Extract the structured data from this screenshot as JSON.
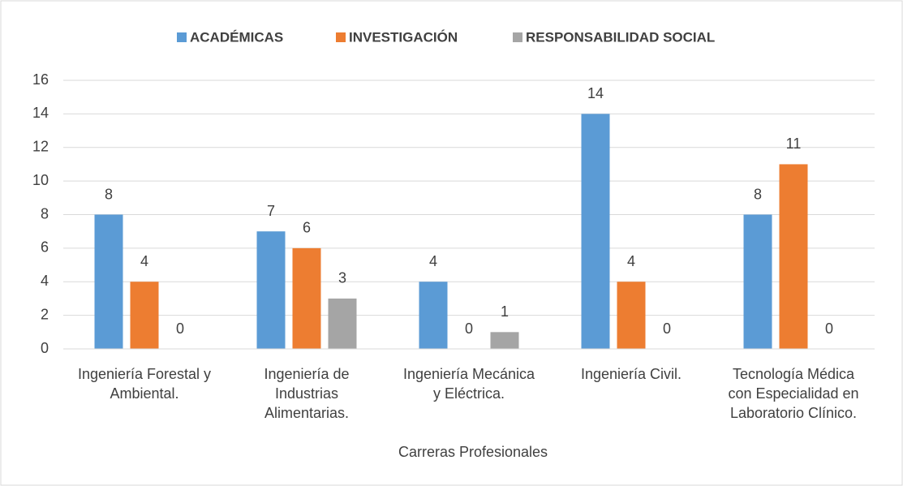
{
  "chart_data": {
    "type": "bar",
    "categories": [
      "Ingeniería Forestal y\nAmbiental.",
      "Ingeniería de\nIndustrias\nAlimentarias.",
      "Ingeniería Mecánica\ny Eléctrica.",
      "Ingeniería Civil.",
      "Tecnología Médica\ncon Especialidad en\nLaboratorio Clínico."
    ],
    "series": [
      {
        "name": "ACADÉMICAS",
        "color": "#5b9bd5",
        "values": [
          8,
          7,
          4,
          14,
          8
        ]
      },
      {
        "name": "INVESTIGACIÓN",
        "color": "#ed7d31",
        "values": [
          4,
          6,
          0,
          4,
          11
        ]
      },
      {
        "name": "RESPONSABILIDAD SOCIAL",
        "color": "#a5a5a5",
        "values": [
          0,
          3,
          1,
          0,
          0
        ]
      }
    ],
    "xlabel": "Carreras Profesionales",
    "ylim": [
      0,
      16
    ],
    "yticks": [
      0,
      2,
      4,
      6,
      8,
      10,
      12,
      14,
      16
    ],
    "grid": true,
    "legend": "top"
  }
}
